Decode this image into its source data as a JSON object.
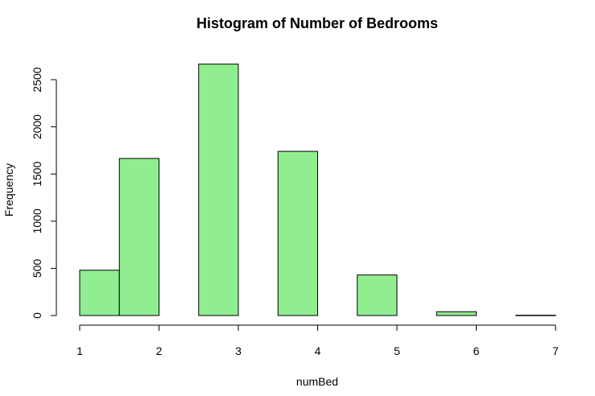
{
  "chart_data": {
    "type": "bar",
    "title": "Histogram of Number of Bedrooms",
    "xlabel": "numBed",
    "ylabel": "Frequency",
    "bins": [
      {
        "start": 1.0,
        "end": 1.5,
        "value": 480
      },
      {
        "start": 1.5,
        "end": 2.0,
        "value": 1665
      },
      {
        "start": 2.0,
        "end": 2.5,
        "value": 0
      },
      {
        "start": 2.5,
        "end": 3.0,
        "value": 2665
      },
      {
        "start": 3.0,
        "end": 3.5,
        "value": 0
      },
      {
        "start": 3.5,
        "end": 4.0,
        "value": 1740
      },
      {
        "start": 4.0,
        "end": 4.5,
        "value": 0
      },
      {
        "start": 4.5,
        "end": 5.0,
        "value": 430
      },
      {
        "start": 5.0,
        "end": 5.5,
        "value": 0
      },
      {
        "start": 5.5,
        "end": 6.0,
        "value": 40
      },
      {
        "start": 6.0,
        "end": 6.5,
        "value": 0
      },
      {
        "start": 6.5,
        "end": 7.0,
        "value": 3
      }
    ],
    "x_ticks": [
      "1",
      "2",
      "3",
      "4",
      "5",
      "6",
      "7"
    ],
    "y_ticks": [
      "0",
      "500",
      "1000",
      "1500",
      "2000",
      "2500"
    ],
    "xlim": [
      1,
      7
    ],
    "ylim": [
      0,
      2500
    ],
    "grid": false,
    "bar_color": "#90ee90"
  }
}
